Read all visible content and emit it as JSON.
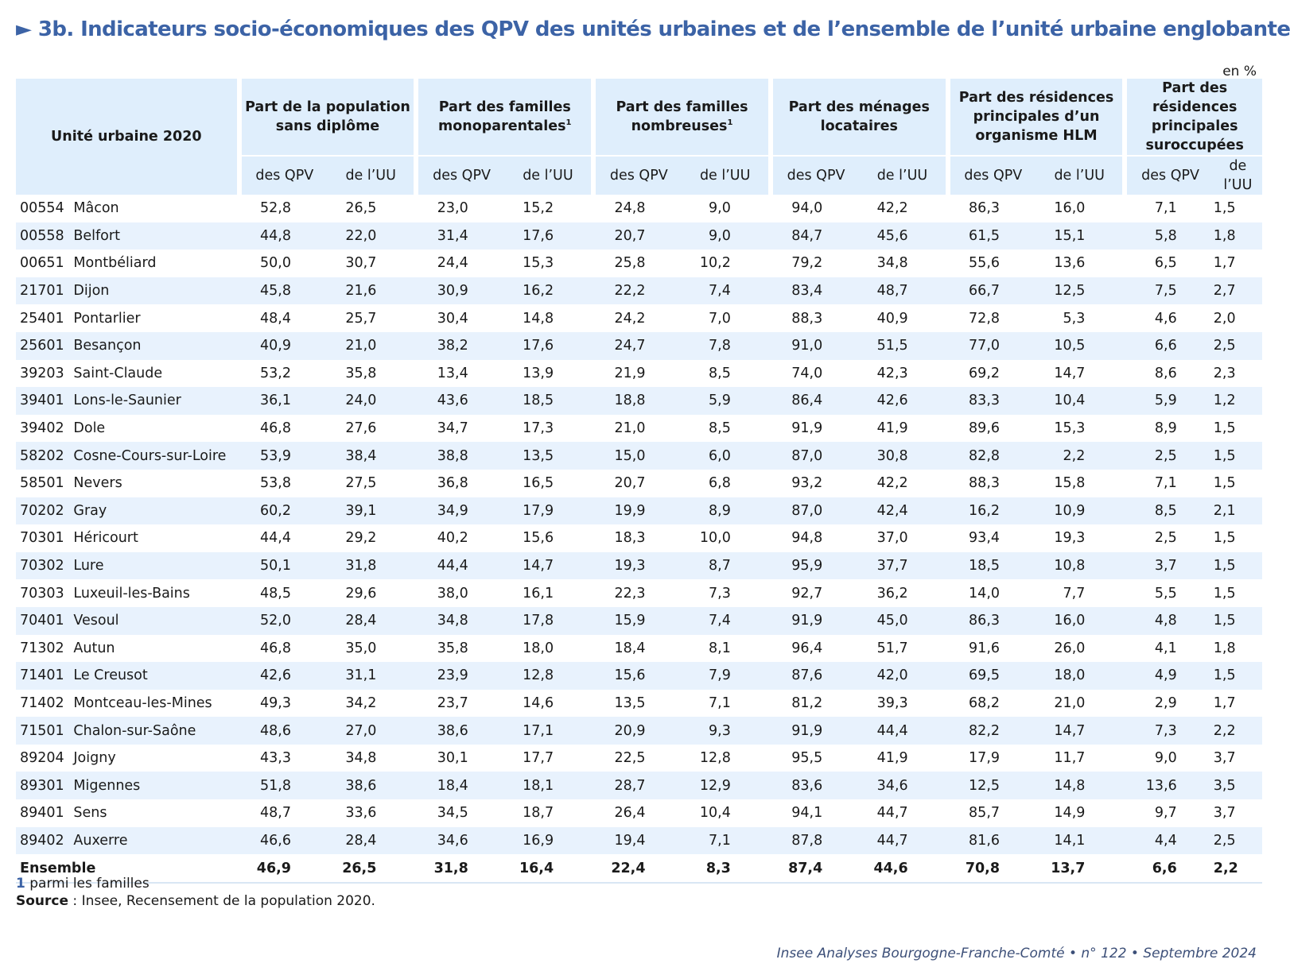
{
  "title": "► 3b. Indicateurs socio-économiques des QPV des unités urbaines et de l’ensemble de l’unité urbaine englobante",
  "unit": "en %",
  "header": {
    "uu_label": "Unité urbaine 2020",
    "groups": [
      {
        "label": "Part de la population sans diplôme",
        "sup": ""
      },
      {
        "label": "Part des familles monoparentales",
        "sup": "1"
      },
      {
        "label": "Part des familles nombreuses",
        "sup": "1"
      },
      {
        "label": "Part des ménages locataires",
        "sup": ""
      },
      {
        "label": "Part des résidences principales d’un organisme HLM",
        "sup": ""
      },
      {
        "label": "Part des résidences principales suroccupées",
        "sup": ""
      }
    ],
    "sub_qpv": "des QPV",
    "sub_uu": "de l’UU"
  },
  "rows": [
    {
      "code": "00554",
      "name": "Mâcon",
      "values": [
        "52,8",
        "26,5",
        "23,0",
        "15,2",
        "24,8",
        "9,0",
        "94,0",
        "42,2",
        "86,3",
        "16,0",
        "7,1",
        "1,5"
      ]
    },
    {
      "code": "00558",
      "name": "Belfort",
      "values": [
        "44,8",
        "22,0",
        "31,4",
        "17,6",
        "20,7",
        "9,0",
        "84,7",
        "45,6",
        "61,5",
        "15,1",
        "5,8",
        "1,8"
      ]
    },
    {
      "code": "00651",
      "name": "Montbéliard",
      "values": [
        "50,0",
        "30,7",
        "24,4",
        "15,3",
        "25,8",
        "10,2",
        "79,2",
        "34,8",
        "55,6",
        "13,6",
        "6,5",
        "1,7"
      ]
    },
    {
      "code": "21701",
      "name": "Dijon",
      "values": [
        "45,8",
        "21,6",
        "30,9",
        "16,2",
        "22,2",
        "7,4",
        "83,4",
        "48,7",
        "66,7",
        "12,5",
        "7,5",
        "2,7"
      ]
    },
    {
      "code": "25401",
      "name": "Pontarlier",
      "values": [
        "48,4",
        "25,7",
        "30,4",
        "14,8",
        "24,2",
        "7,0",
        "88,3",
        "40,9",
        "72,8",
        "5,3",
        "4,6",
        "2,0"
      ]
    },
    {
      "code": "25601",
      "name": "Besançon",
      "values": [
        "40,9",
        "21,0",
        "38,2",
        "17,6",
        "24,7",
        "7,8",
        "91,0",
        "51,5",
        "77,0",
        "10,5",
        "6,6",
        "2,5"
      ]
    },
    {
      "code": "39203",
      "name": "Saint-Claude",
      "values": [
        "53,2",
        "35,8",
        "13,4",
        "13,9",
        "21,9",
        "8,5",
        "74,0",
        "42,3",
        "69,2",
        "14,7",
        "8,6",
        "2,3"
      ]
    },
    {
      "code": "39401",
      "name": "Lons-le-Saunier",
      "values": [
        "36,1",
        "24,0",
        "43,6",
        "18,5",
        "18,8",
        "5,9",
        "86,4",
        "42,6",
        "83,3",
        "10,4",
        "5,9",
        "1,2"
      ]
    },
    {
      "code": "39402",
      "name": "Dole",
      "values": [
        "46,8",
        "27,6",
        "34,7",
        "17,3",
        "21,0",
        "8,5",
        "91,9",
        "41,9",
        "89,6",
        "15,3",
        "8,9",
        "1,5"
      ]
    },
    {
      "code": "58202",
      "name": "Cosne-Cours-sur-Loire",
      "values": [
        "53,9",
        "38,4",
        "38,8",
        "13,5",
        "15,0",
        "6,0",
        "87,0",
        "30,8",
        "82,8",
        "2,2",
        "2,5",
        "1,5"
      ]
    },
    {
      "code": "58501",
      "name": "Nevers",
      "values": [
        "53,8",
        "27,5",
        "36,8",
        "16,5",
        "20,7",
        "6,8",
        "93,2",
        "42,2",
        "88,3",
        "15,8",
        "7,1",
        "1,5"
      ]
    },
    {
      "code": "70202",
      "name": "Gray",
      "values": [
        "60,2",
        "39,1",
        "34,9",
        "17,9",
        "19,9",
        "8,9",
        "87,0",
        "42,4",
        "16,2",
        "10,9",
        "8,5",
        "2,1"
      ]
    },
    {
      "code": "70301",
      "name": "Héricourt",
      "values": [
        "44,4",
        "29,2",
        "40,2",
        "15,6",
        "18,3",
        "10,0",
        "94,8",
        "37,0",
        "93,4",
        "19,3",
        "2,5",
        "1,5"
      ]
    },
    {
      "code": "70302",
      "name": "Lure",
      "values": [
        "50,1",
        "31,8",
        "44,4",
        "14,7",
        "19,3",
        "8,7",
        "95,9",
        "37,7",
        "18,5",
        "10,8",
        "3,7",
        "1,5"
      ]
    },
    {
      "code": "70303",
      "name": "Luxeuil-les-Bains",
      "values": [
        "48,5",
        "29,6",
        "38,0",
        "16,1",
        "22,3",
        "7,3",
        "92,7",
        "36,2",
        "14,0",
        "7,7",
        "5,5",
        "1,5"
      ]
    },
    {
      "code": "70401",
      "name": "Vesoul",
      "values": [
        "52,0",
        "28,4",
        "34,8",
        "17,8",
        "15,9",
        "7,4",
        "91,9",
        "45,0",
        "86,3",
        "16,0",
        "4,8",
        "1,5"
      ]
    },
    {
      "code": "71302",
      "name": "Autun",
      "values": [
        "46,8",
        "35,0",
        "35,8",
        "18,0",
        "18,4",
        "8,1",
        "96,4",
        "51,7",
        "91,6",
        "26,0",
        "4,1",
        "1,8"
      ]
    },
    {
      "code": "71401",
      "name": "Le Creusot",
      "values": [
        "42,6",
        "31,1",
        "23,9",
        "12,8",
        "15,6",
        "7,9",
        "87,6",
        "42,0",
        "69,5",
        "18,0",
        "4,9",
        "1,5"
      ]
    },
    {
      "code": "71402",
      "name": "Montceau-les-Mines",
      "values": [
        "49,3",
        "34,2",
        "23,7",
        "14,6",
        "13,5",
        "7,1",
        "81,2",
        "39,3",
        "68,2",
        "21,0",
        "2,9",
        "1,7"
      ]
    },
    {
      "code": "71501",
      "name": "Chalon-sur-Saône",
      "values": [
        "48,6",
        "27,0",
        "38,6",
        "17,1",
        "20,9",
        "9,3",
        "91,9",
        "44,4",
        "82,2",
        "14,7",
        "7,3",
        "2,2"
      ]
    },
    {
      "code": "89204",
      "name": "Joigny",
      "values": [
        "43,3",
        "34,8",
        "30,1",
        "17,7",
        "22,5",
        "12,8",
        "95,5",
        "41,9",
        "17,9",
        "11,7",
        "9,0",
        "3,7"
      ]
    },
    {
      "code": "89301",
      "name": "Migennes",
      "values": [
        "51,8",
        "38,6",
        "18,4",
        "18,1",
        "28,7",
        "12,9",
        "83,6",
        "34,6",
        "12,5",
        "14,8",
        "13,6",
        "3,5"
      ]
    },
    {
      "code": "89401",
      "name": "Sens",
      "values": [
        "48,7",
        "33,6",
        "34,5",
        "18,7",
        "26,4",
        "10,4",
        "94,1",
        "44,7",
        "85,7",
        "14,9",
        "9,7",
        "3,7"
      ]
    },
    {
      "code": "89402",
      "name": "Auxerre",
      "values": [
        "46,6",
        "28,4",
        "34,6",
        "16,9",
        "19,4",
        "7,1",
        "87,8",
        "44,7",
        "81,6",
        "14,1",
        "4,4",
        "2,5"
      ]
    }
  ],
  "total": {
    "label": "Ensemble",
    "values": [
      "46,9",
      "26,5",
      "31,8",
      "16,4",
      "22,4",
      "8,3",
      "87,4",
      "44,6",
      "70,8",
      "13,7",
      "6,6",
      "2,2"
    ]
  },
  "footnote": {
    "number": "1",
    "text": " parmi les familles"
  },
  "source": {
    "label": "Source",
    "text": " : Insee, Recensement de la population 2020."
  },
  "citation": "Insee Analyses Bourgogne-Franche-Comté • n° 122 • Septembre 2024"
}
